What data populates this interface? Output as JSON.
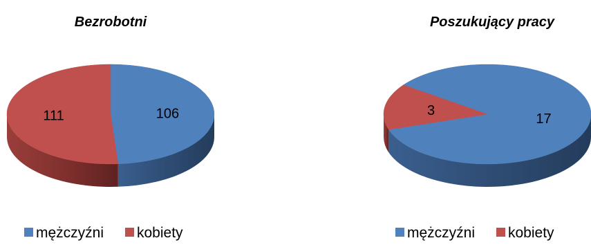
{
  "chart_data": [
    {
      "type": "pie",
      "title": "Bezrobotni",
      "categories": [
        "mężczyźni",
        "kobiety"
      ],
      "values": [
        106,
        111
      ],
      "colors": [
        "#4f81bd",
        "#c0504d"
      ],
      "legend": "bottom"
    },
    {
      "type": "pie",
      "title": "Poszukujący pracy",
      "categories": [
        "mężczyźni",
        "kobiety"
      ],
      "values": [
        17,
        3
      ],
      "colors": [
        "#4f81bd",
        "#c0504d"
      ],
      "legend": "bottom"
    }
  ]
}
